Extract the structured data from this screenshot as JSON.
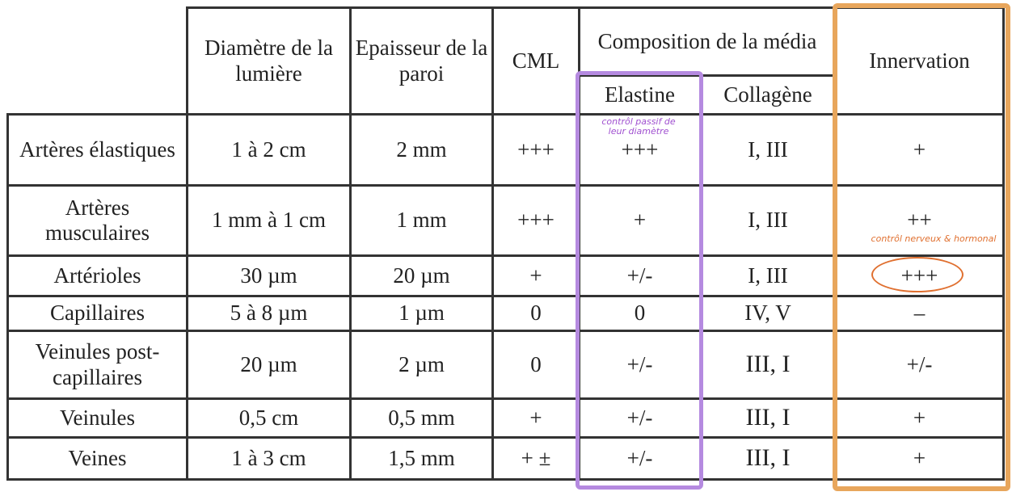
{
  "table": {
    "headers": {
      "lumiere": "Diamètre de la lumière",
      "paroi": "Epaisseur de la paroi",
      "cml": "CML",
      "composition": "Composition de la média",
      "elastine": "Elastine",
      "collagene": "Collagène",
      "innervation": "Innervation"
    },
    "rows": [
      {
        "name": "Artères élastiques",
        "lumiere": "1 à 2 cm",
        "paroi": "2 mm",
        "cml": "+++",
        "elastine": "+++",
        "collagene": "I, III",
        "innervation": "+"
      },
      {
        "name": "Artères musculaires",
        "lumiere": "1 mm à 1 cm",
        "paroi": "1 mm",
        "cml": "+++",
        "elastine": "+",
        "collagene": "I, III",
        "innervation": "++"
      },
      {
        "name": "Artérioles",
        "lumiere": "30 µm",
        "paroi": "20 µm",
        "cml": "+",
        "elastine": "+/-",
        "collagene": "I, III",
        "innervation": "+++"
      },
      {
        "name": "Capillaires",
        "lumiere": "5 à 8 µm",
        "paroi": "1 µm",
        "cml": "0",
        "elastine": "0",
        "collagene": "IV, V",
        "innervation": "–"
      },
      {
        "name": "Veinules post-capillaires",
        "lumiere": "20 µm",
        "paroi": "2 µm",
        "cml": "0",
        "elastine": "+/-",
        "collagene": "III, I",
        "innervation": "+/-"
      },
      {
        "name": "Veinules",
        "lumiere": "0,5 cm",
        "paroi": "0,5 mm",
        "cml": "+",
        "elastine": "+/-",
        "collagene": "III, I",
        "innervation": "+"
      },
      {
        "name": "Veines",
        "lumiere": "1 à 3 cm",
        "paroi": "1,5 mm",
        "cml": "+ ±",
        "elastine": "+/-",
        "collagene": "III, I",
        "innervation": "+"
      }
    ]
  },
  "annotations": {
    "elastine_note": "contrôl passif de leur diamètre",
    "innervation_note": "contrôl nerveux & hormonal"
  },
  "colors": {
    "elastine_highlight": "#b58ae0",
    "innervation_highlight": "#e8a65c",
    "note_purple": "#a050d0",
    "note_orange": "#e07030"
  }
}
